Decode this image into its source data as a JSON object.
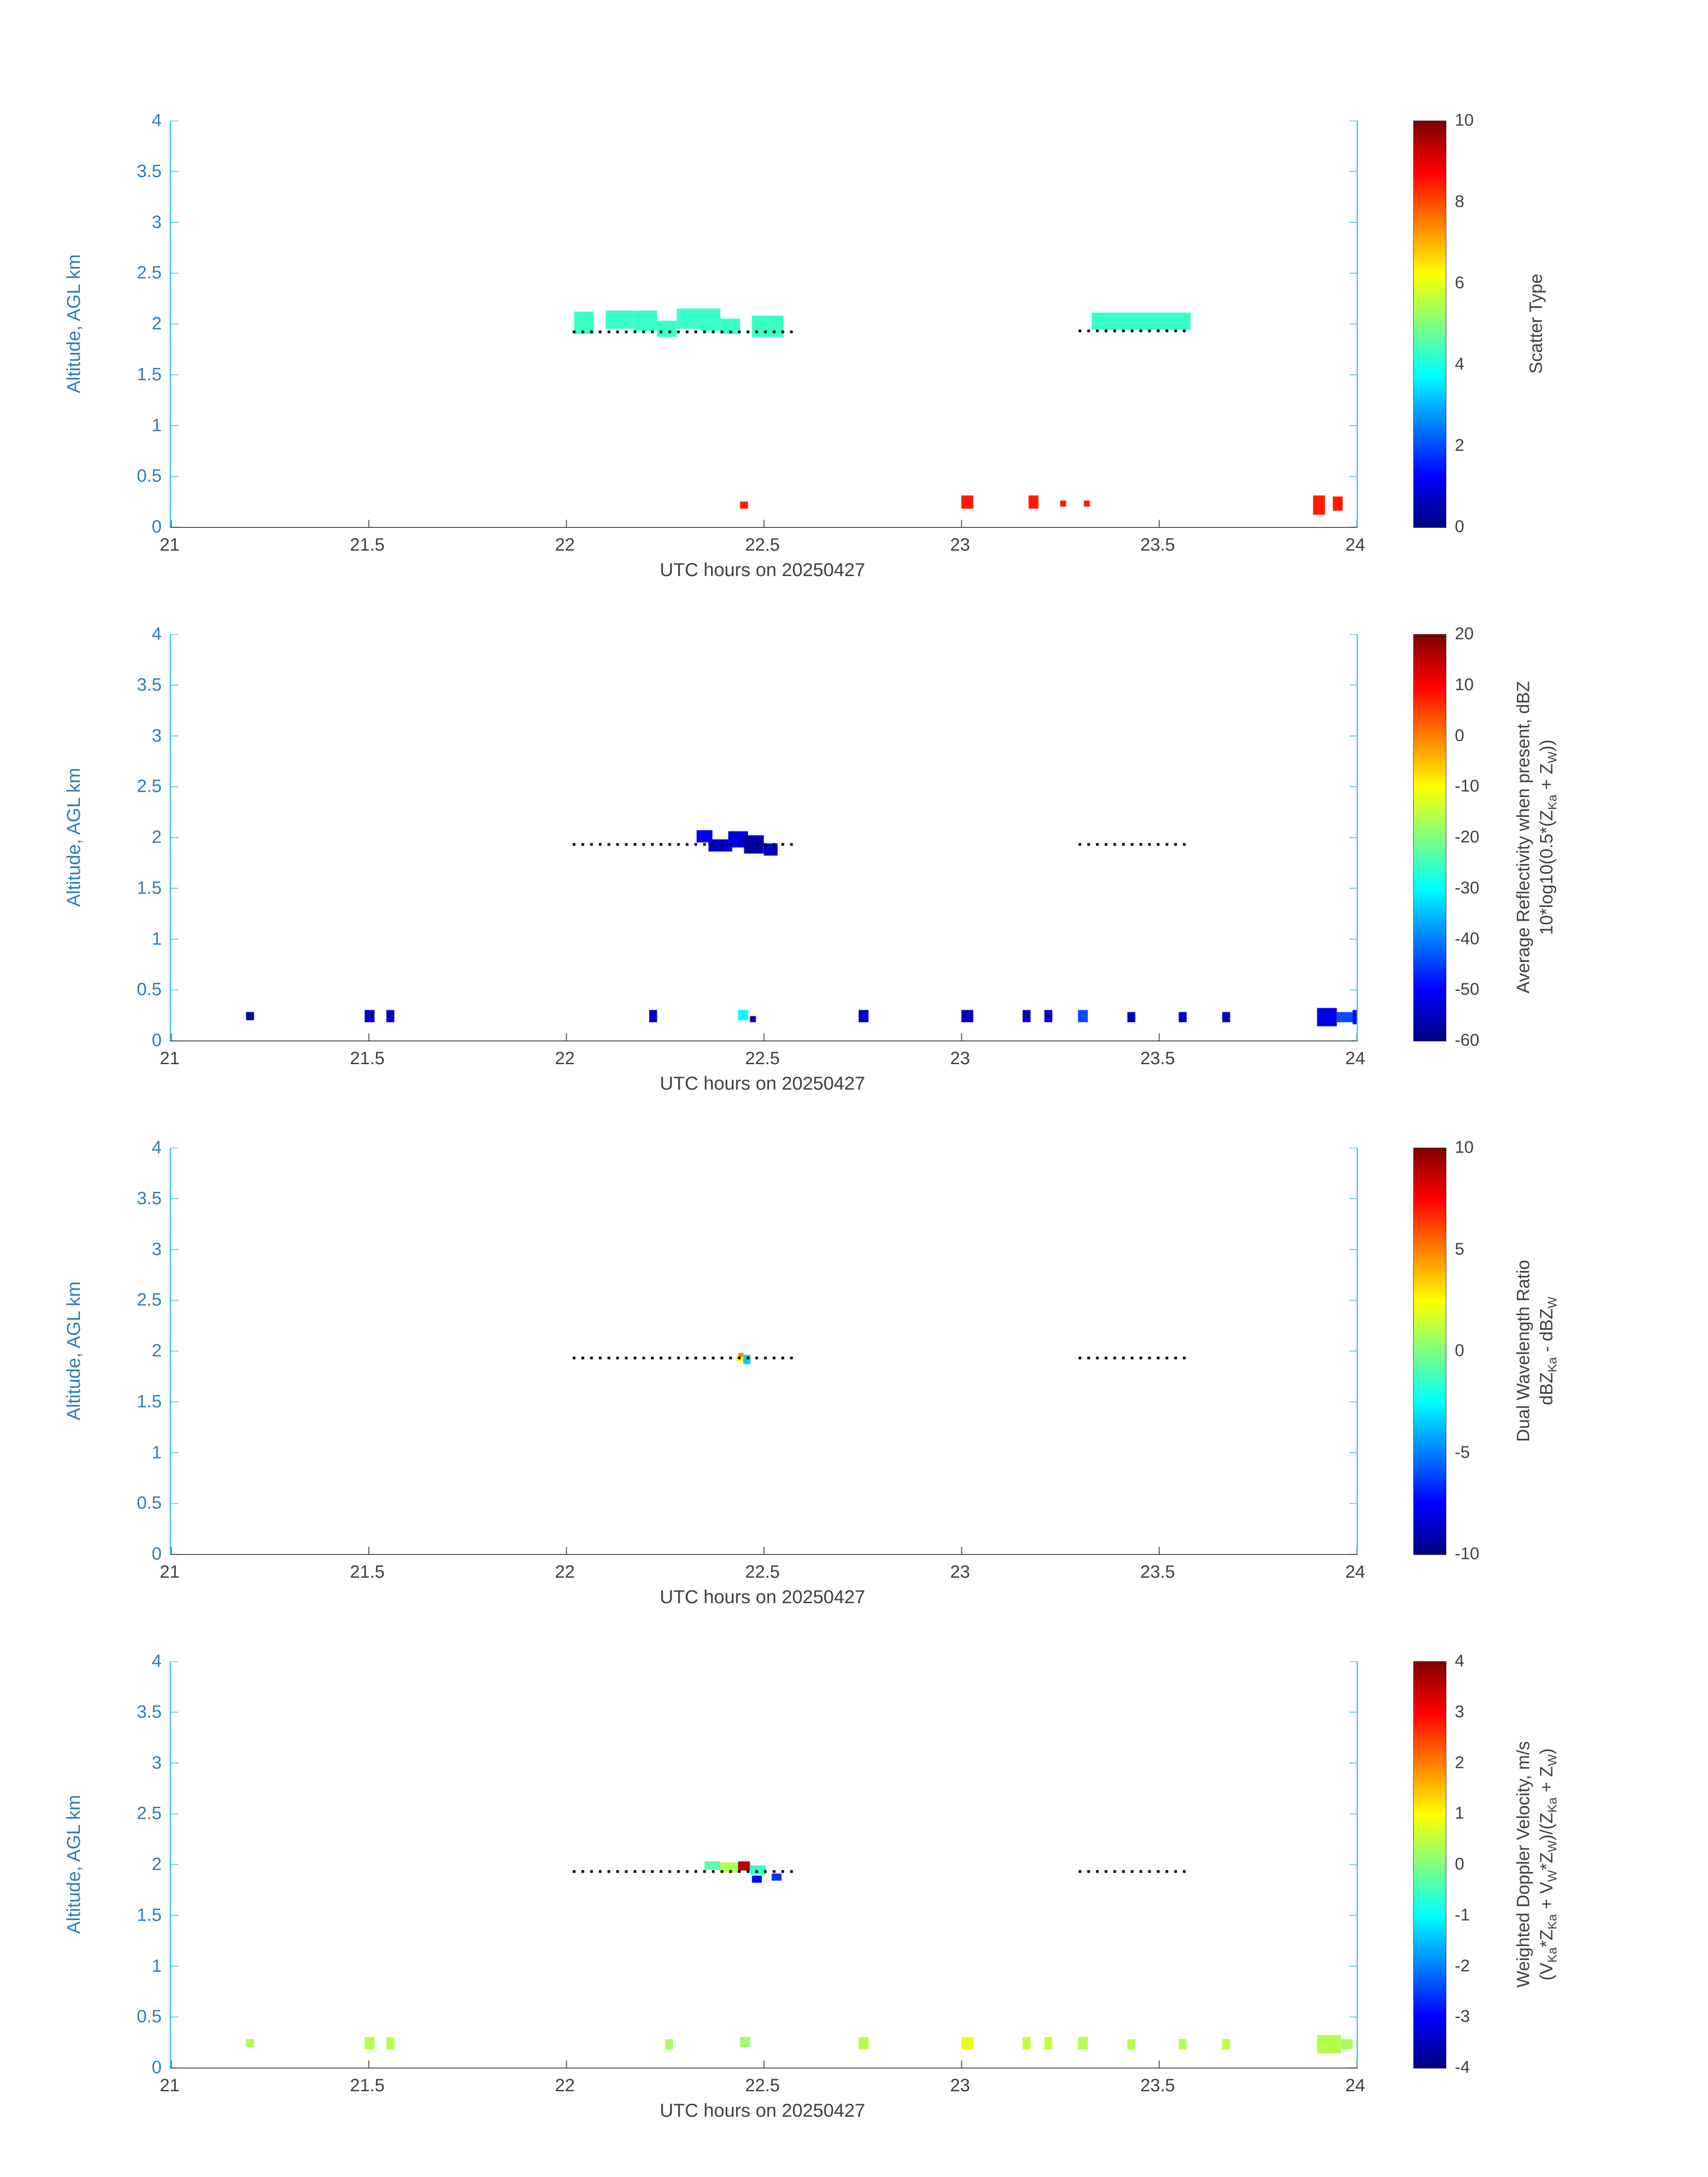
{
  "style": {
    "background": "#ffffff",
    "y_axis_color": "#2E7DB5",
    "axis_line_color": "#46C8E1",
    "x_axis_color": "#404040",
    "dot_color": "#000000",
    "colorbar_border": "#333333"
  },
  "chart_data": [
    {
      "type": "heatmap",
      "name": "scatter-type",
      "xlabel": "UTC hours on 20250427",
      "ylabel": "Altitude, AGL km",
      "xlim": [
        21,
        24
      ],
      "ylim": [
        0,
        4
      ],
      "x_ticks": [
        21,
        21.5,
        22,
        22.5,
        23,
        23.5,
        24
      ],
      "y_ticks": [
        0,
        0.5,
        1,
        1.5,
        2,
        2.5,
        3,
        3.5,
        4
      ],
      "colorbar": {
        "min": 0,
        "max": 10,
        "ticks": [
          0,
          2,
          4,
          6,
          8,
          10
        ],
        "label_lines": [
          "Scatter Type"
        ]
      },
      "cells": [
        [
          22.02,
          0.05,
          1.9,
          0.22,
          4.3
        ],
        [
          22.1,
          0.07,
          1.95,
          0.18,
          4.3
        ],
        [
          22.17,
          0.06,
          1.93,
          0.2,
          4.3
        ],
        [
          22.23,
          0.05,
          1.87,
          0.16,
          4.3
        ],
        [
          22.28,
          0.06,
          1.95,
          0.2,
          4.3
        ],
        [
          22.34,
          0.05,
          1.93,
          0.22,
          4.3
        ],
        [
          22.39,
          0.05,
          1.9,
          0.15,
          4.3
        ],
        [
          22.47,
          0.08,
          1.87,
          0.21,
          4.3
        ],
        [
          23.33,
          0.25,
          1.94,
          0.17,
          4.3
        ],
        [
          22.44,
          0.02,
          0.18,
          0.07,
          8.5
        ],
        [
          23.0,
          0.03,
          0.18,
          0.13,
          8.5
        ],
        [
          23.17,
          0.025,
          0.18,
          0.13,
          8.5
        ],
        [
          23.25,
          0.015,
          0.2,
          0.06,
          8.5
        ],
        [
          23.31,
          0.015,
          0.2,
          0.06,
          8.5
        ],
        [
          23.89,
          0.03,
          0.12,
          0.19,
          8.5
        ],
        [
          23.94,
          0.025,
          0.16,
          0.14,
          8.5
        ]
      ],
      "dots": [
        [
          22.02,
          22.57,
          1.92
        ],
        [
          23.3,
          23.58,
          1.93
        ]
      ],
      "dot_spacing": 0.022
    },
    {
      "type": "heatmap",
      "name": "average-reflectivity",
      "xlabel": "UTC hours on 20250427",
      "ylabel": "Altitude, AGL km",
      "xlim": [
        21,
        24
      ],
      "ylim": [
        0,
        4
      ],
      "x_ticks": [
        21,
        21.5,
        22,
        22.5,
        23,
        23.5,
        24
      ],
      "y_ticks": [
        0,
        0.5,
        1,
        1.5,
        2,
        2.5,
        3,
        3.5,
        4
      ],
      "colorbar": {
        "min": -60,
        "max": 20,
        "ticks": [
          -60,
          -50,
          -40,
          -30,
          -20,
          -10,
          0,
          10,
          20
        ],
        "label_lines": [
          "Average Reflectivity when present, dBZ",
          "10*log10(0.5*(Z_{Ka} + Z_{W}))"
        ]
      },
      "cells": [
        [
          22.33,
          0.04,
          1.95,
          0.12,
          -50
        ],
        [
          22.36,
          0.06,
          1.86,
          0.12,
          -55
        ],
        [
          22.41,
          0.05,
          1.9,
          0.16,
          -52
        ],
        [
          22.45,
          0.05,
          1.84,
          0.18,
          -57
        ],
        [
          22.5,
          0.035,
          1.82,
          0.12,
          -55
        ],
        [
          21.19,
          0.02,
          0.2,
          0.08,
          -57
        ],
        [
          21.49,
          0.025,
          0.18,
          0.12,
          -55
        ],
        [
          21.545,
          0.02,
          0.18,
          0.12,
          -55
        ],
        [
          22.21,
          0.02,
          0.18,
          0.12,
          -55
        ],
        [
          22.435,
          0.025,
          0.2,
          0.1,
          -30
        ],
        [
          22.465,
          0.015,
          0.18,
          0.06,
          -57
        ],
        [
          22.74,
          0.025,
          0.18,
          0.12,
          -55
        ],
        [
          23.0,
          0.03,
          0.18,
          0.12,
          -55
        ],
        [
          23.155,
          0.02,
          0.18,
          0.12,
          -55
        ],
        [
          23.21,
          0.02,
          0.18,
          0.12,
          -55
        ],
        [
          23.295,
          0.025,
          0.18,
          0.12,
          -44
        ],
        [
          23.42,
          0.02,
          0.18,
          0.1,
          -55
        ],
        [
          23.55,
          0.02,
          0.18,
          0.1,
          -55
        ],
        [
          23.66,
          0.02,
          0.18,
          0.1,
          -55
        ],
        [
          23.9,
          0.05,
          0.14,
          0.18,
          -52
        ],
        [
          23.95,
          0.04,
          0.18,
          0.1,
          -44
        ],
        [
          23.99,
          0.012,
          0.16,
          0.14,
          -50
        ]
      ],
      "dots": [
        [
          22.02,
          22.57,
          1.93
        ],
        [
          23.3,
          23.58,
          1.93
        ]
      ],
      "dot_spacing": 0.022
    },
    {
      "type": "heatmap",
      "name": "dual-wavelength-ratio",
      "xlabel": "UTC hours on 20250427",
      "ylabel": "Altitude, AGL km",
      "xlim": [
        21,
        24
      ],
      "ylim": [
        0,
        4
      ],
      "x_ticks": [
        21,
        21.5,
        22,
        22.5,
        23,
        23.5,
        24
      ],
      "y_ticks": [
        0,
        0.5,
        1,
        1.5,
        2,
        2.5,
        3,
        3.5,
        4
      ],
      "colorbar": {
        "min": -10,
        "max": 10,
        "ticks": [
          -10,
          -5,
          0,
          5,
          10
        ],
        "label_lines": [
          "Dual Wavelength Ratio",
          "dBZ_{Ka} - dBZ_{W}"
        ]
      },
      "cells": [
        [
          22.43,
          0.018,
          1.9,
          0.06,
          2.5
        ],
        [
          22.436,
          0.012,
          1.94,
          0.04,
          5.0
        ],
        [
          22.448,
          0.018,
          1.87,
          0.09,
          -3.5
        ]
      ],
      "dots": [
        [
          22.02,
          22.57,
          1.93
        ],
        [
          23.3,
          23.58,
          1.93
        ]
      ],
      "dot_spacing": 0.022
    },
    {
      "type": "heatmap",
      "name": "weighted-doppler-velocity",
      "xlabel": "UTC hours on 20250427",
      "ylabel": "Altitude, AGL km",
      "xlim": [
        21,
        24
      ],
      "ylim": [
        0,
        4
      ],
      "x_ticks": [
        21,
        21.5,
        22,
        22.5,
        23,
        23.5,
        24
      ],
      "y_ticks": [
        0,
        0.5,
        1,
        1.5,
        2,
        2.5,
        3,
        3.5,
        4
      ],
      "colorbar": {
        "min": -4,
        "max": 4,
        "ticks": [
          -4,
          -3,
          -2,
          -1,
          0,
          1,
          2,
          3,
          4
        ],
        "label_lines": [
          "Weighted Doppler Velocity, m/s",
          "(V_{Ka}*Z_{Ka} + V_{W}*Z_{W})/(Z_{Ka} + Z_{W})"
        ]
      },
      "cells": [
        [
          22.35,
          0.04,
          1.95,
          0.08,
          -0.3
        ],
        [
          22.39,
          0.05,
          1.92,
          0.1,
          0.4
        ],
        [
          22.435,
          0.03,
          1.94,
          0.09,
          3.6
        ],
        [
          22.465,
          0.04,
          1.9,
          0.09,
          -0.6
        ],
        [
          22.47,
          0.025,
          1.82,
          0.07,
          -3.0
        ],
        [
          22.52,
          0.025,
          1.84,
          0.07,
          -2.6
        ],
        [
          21.19,
          0.02,
          0.2,
          0.08,
          0.4
        ],
        [
          21.49,
          0.025,
          0.18,
          0.12,
          0.4
        ],
        [
          21.545,
          0.02,
          0.18,
          0.12,
          0.4
        ],
        [
          22.25,
          0.02,
          0.18,
          0.1,
          0.3
        ],
        [
          22.44,
          0.025,
          0.2,
          0.1,
          0.2
        ],
        [
          22.74,
          0.025,
          0.18,
          0.12,
          0.4
        ],
        [
          23.0,
          0.03,
          0.18,
          0.12,
          0.8
        ],
        [
          23.155,
          0.02,
          0.18,
          0.12,
          0.5
        ],
        [
          23.21,
          0.02,
          0.18,
          0.12,
          0.5
        ],
        [
          23.295,
          0.025,
          0.18,
          0.12,
          0.4
        ],
        [
          23.42,
          0.02,
          0.18,
          0.1,
          0.4
        ],
        [
          23.55,
          0.02,
          0.18,
          0.1,
          0.4
        ],
        [
          23.66,
          0.02,
          0.18,
          0.1,
          0.5
        ],
        [
          23.9,
          0.06,
          0.14,
          0.18,
          0.4
        ],
        [
          23.96,
          0.03,
          0.18,
          0.1,
          0.3
        ]
      ],
      "dots": [
        [
          22.02,
          22.57,
          1.93
        ],
        [
          23.3,
          23.58,
          1.93
        ]
      ],
      "dot_spacing": 0.022
    }
  ]
}
